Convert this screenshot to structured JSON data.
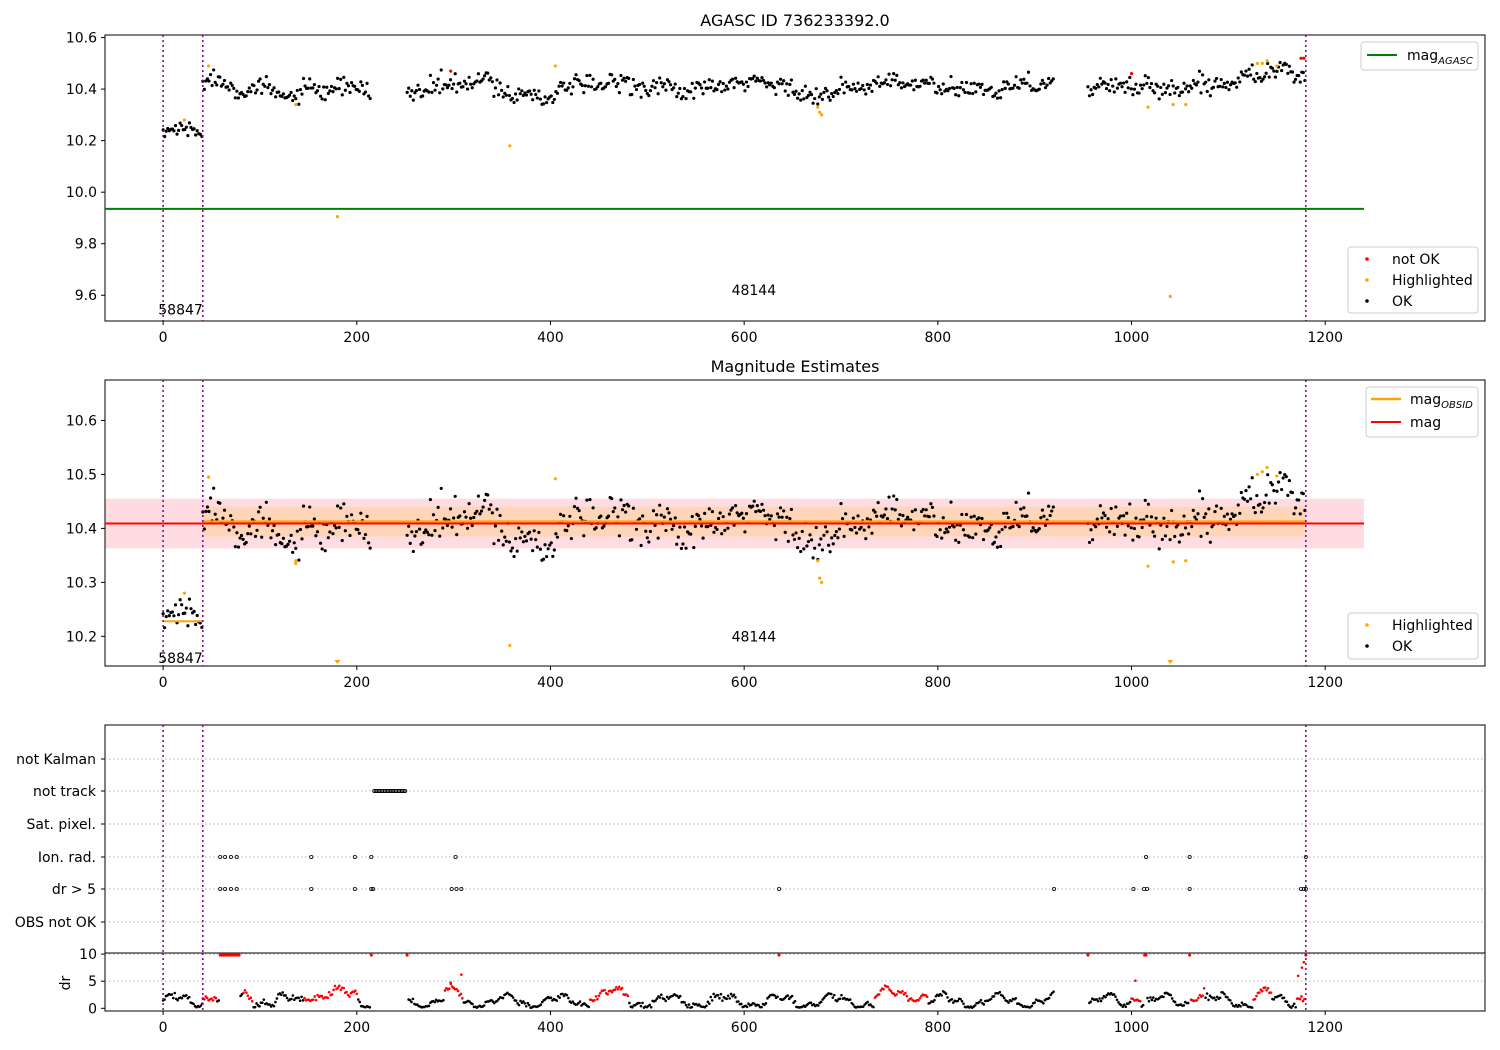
{
  "chart_data": [
    {
      "type": "scatter",
      "title": "AGASC ID 736233392.0",
      "xlim": [
        -60,
        1365
      ],
      "ylim": [
        9.5,
        10.61
      ],
      "xticks": [
        0,
        200,
        400,
        600,
        800,
        1000,
        1200
      ],
      "yticks": [
        9.6,
        9.8,
        10.0,
        10.2,
        10.4,
        10.6
      ],
      "xtick_labels": [
        "0",
        "200",
        "400",
        "600",
        "800",
        "1000",
        "1200"
      ],
      "ytick_labels": [
        "9.6",
        "9.8",
        "10.0",
        "10.2",
        "10.4",
        "10.6"
      ],
      "vlines": [
        0,
        41,
        1180
      ],
      "annotations": [
        {
          "text": "58847",
          "x": 18,
          "y": 9.545
        },
        {
          "text": "48144",
          "x": 610,
          "y": 9.62
        }
      ],
      "lines": [
        {
          "name": "mag_AGASC",
          "color": "#008000",
          "x": [
            -60,
            1240
          ],
          "y": [
            9.935,
            9.935
          ]
        }
      ],
      "legends": [
        {
          "position": "upper right",
          "entries": [
            {
              "label": "mag",
              "sub": "AGASC",
              "kind": "line",
              "color": "#008000"
            }
          ]
        },
        {
          "position": "lower right",
          "entries": [
            {
              "label": "not OK",
              "kind": "dot",
              "color": "#ff0000"
            },
            {
              "label": "Highlighted",
              "kind": "dot",
              "color": "#ffa500"
            },
            {
              "label": "OK",
              "kind": "dot",
              "color": "#000000"
            }
          ]
        }
      ],
      "series_meta": [
        {
          "name": "OK",
          "color": "#000000"
        },
        {
          "name": "Highlighted",
          "color": "#ffa500"
        },
        {
          "name": "not OK",
          "color": "#ff0000"
        }
      ],
      "segments": [
        {
          "x": [
            0,
            41
          ],
          "base": 10.225,
          "slope": 0.0003
        },
        {
          "x": [
            41,
            215
          ],
          "base": 10.42,
          "slope": -0.0002
        },
        {
          "x": [
            252,
            920
          ],
          "base": 10.41,
          "slope": 0
        },
        {
          "x": [
            955,
            1180
          ],
          "base": 10.42,
          "slope": 0.0001
        }
      ],
      "highlighted_points": [
        [
          47,
          10.49
        ],
        [
          22,
          10.28
        ],
        [
          137,
          10.34
        ],
        [
          180,
          9.905
        ],
        [
          358,
          10.18
        ],
        [
          405,
          10.49
        ],
        [
          676,
          10.33
        ],
        [
          678,
          10.31
        ],
        [
          680,
          10.3
        ],
        [
          1017,
          10.33
        ],
        [
          1040,
          9.595
        ],
        [
          1043,
          10.34
        ],
        [
          1056,
          10.34
        ],
        [
          1130,
          10.5
        ],
        [
          1140,
          10.51
        ],
        [
          1150,
          10.49
        ],
        [
          1135,
          10.5
        ]
      ],
      "notok_points": [
        [
          297,
          10.47
        ],
        [
          1000,
          10.46
        ],
        [
          1175,
          10.52
        ],
        [
          1178,
          10.52
        ]
      ]
    },
    {
      "type": "scatter",
      "title": "Magnitude Estimates",
      "xlim": [
        -60,
        1365
      ],
      "ylim": [
        10.145,
        10.675
      ],
      "xticks": [
        0,
        200,
        400,
        600,
        800,
        1000,
        1200
      ],
      "yticks": [
        10.2,
        10.3,
        10.4,
        10.5,
        10.6
      ],
      "xtick_labels": [
        "0",
        "200",
        "400",
        "600",
        "800",
        "1000",
        "1200"
      ],
      "ytick_labels": [
        "10.2",
        "10.3",
        "10.4",
        "10.5",
        "10.6"
      ],
      "vlines": [
        0,
        41,
        1180
      ],
      "annotations": [
        {
          "text": "58847",
          "x": 18,
          "y": 10.16
        },
        {
          "text": "48144",
          "x": 610,
          "y": 10.2
        }
      ],
      "bands": [
        {
          "color": "#ffc0cb",
          "x": [
            -60,
            1240
          ],
          "y": [
            10.363,
            10.455
          ]
        },
        {
          "color": "#ffd0a0",
          "x": [
            41,
            1180
          ],
          "y": [
            10.385,
            10.44
          ]
        }
      ],
      "lines": [
        {
          "name": "mag",
          "color": "#ff0000",
          "x": [
            -60,
            1240
          ],
          "y": [
            10.409,
            10.409
          ]
        },
        {
          "name": "mag_OBSID",
          "color": "#ffa500",
          "x": [
            41,
            1180
          ],
          "y": [
            10.413,
            10.413
          ]
        },
        {
          "name": "mag_OBSID_first",
          "color": "#ffa500",
          "x": [
            0,
            41
          ],
          "y": [
            10.228,
            10.228
          ]
        }
      ],
      "legends": [
        {
          "position": "upper right",
          "entries": [
            {
              "label": "mag",
              "sub": "OBSID",
              "kind": "line",
              "color": "#ffa500"
            },
            {
              "label": "mag",
              "kind": "line",
              "color": "#ff0000"
            }
          ]
        },
        {
          "position": "lower right",
          "entries": [
            {
              "label": "Highlighted",
              "kind": "dot",
              "color": "#ffa500"
            },
            {
              "label": "OK",
              "kind": "dot",
              "color": "#000000"
            }
          ]
        }
      ],
      "segments": [
        {
          "x": [
            0,
            41
          ],
          "base": 10.225,
          "slope": 0.0003
        },
        {
          "x": [
            41,
            215
          ],
          "base": 10.42,
          "slope": -0.0002
        },
        {
          "x": [
            252,
            920
          ],
          "base": 10.41,
          "slope": 0
        },
        {
          "x": [
            955,
            1180
          ],
          "base": 10.42,
          "slope": 0.0001
        }
      ],
      "highlighted_points": [
        [
          47,
          10.495
        ],
        [
          22,
          10.28
        ],
        [
          137,
          10.34
        ],
        [
          137,
          10.335
        ],
        [
          358,
          10.183
        ],
        [
          405,
          10.492
        ],
        [
          676,
          10.34
        ],
        [
          678,
          10.308
        ],
        [
          680,
          10.3
        ],
        [
          1017,
          10.33
        ],
        [
          1043,
          10.338
        ],
        [
          1056,
          10.34
        ],
        [
          1130,
          10.5
        ],
        [
          1140,
          10.513
        ],
        [
          1150,
          10.497
        ],
        [
          1135,
          10.505
        ]
      ],
      "clipped_markers": [
        180,
        1040
      ]
    },
    {
      "type": "scatter",
      "title": "",
      "xlim": [
        -60,
        1365
      ],
      "xticks": [
        0,
        200,
        400,
        600,
        800,
        1000,
        1200
      ],
      "xtick_labels": [
        "0",
        "200",
        "400",
        "600",
        "800",
        "1000",
        "1200"
      ],
      "vlines": [
        0,
        41,
        1180
      ],
      "flag_rows": [
        {
          "label": "not Kalman",
          "points": []
        },
        {
          "label": "not track",
          "points": [
            [
              218,
              250
            ]
          ]
        },
        {
          "label": "Sat. pixel.",
          "points": []
        },
        {
          "label": "Ion. rad.",
          "points": [
            59,
            64,
            70,
            76,
            153,
            198,
            215,
            302,
            1015,
            1060,
            1180
          ]
        },
        {
          "label": "dr > 5",
          "points": [
            59,
            64,
            70,
            76,
            153,
            198,
            215,
            217,
            298,
            303,
            308,
            636,
            920,
            1002,
            1013,
            1016,
            1060,
            1175,
            1178,
            1180
          ]
        },
        {
          "label": "OBS not OK",
          "points": []
        }
      ],
      "dr_panel": {
        "ylabel": "dr",
        "ylim": [
          -0.5,
          10.2
        ],
        "yticks": [
          0,
          5,
          10
        ],
        "ytick_labels": [
          "0",
          "5",
          "10"
        ],
        "ok_color": "#000000",
        "bad_color": "#ff0000",
        "bad_x": [
          [
            59,
            79
          ],
          [
            153,
            153
          ],
          [
            198,
            198
          ],
          [
            215,
            252
          ],
          [
            302,
            302
          ],
          [
            636,
            636
          ],
          [
            920,
            955
          ],
          [
            1013,
            1016
          ],
          [
            1060,
            1060
          ],
          [
            1180,
            1180
          ]
        ],
        "red_low_ranges": [
          [
            41,
            55
          ],
          [
            82,
            93
          ],
          [
            145,
            200
          ],
          [
            290,
            310
          ],
          [
            440,
            480
          ],
          [
            735,
            790
          ],
          [
            1000,
            1010
          ],
          [
            1060,
            1075
          ],
          [
            1125,
            1145
          ],
          [
            1170,
            1180
          ]
        ]
      }
    }
  ]
}
